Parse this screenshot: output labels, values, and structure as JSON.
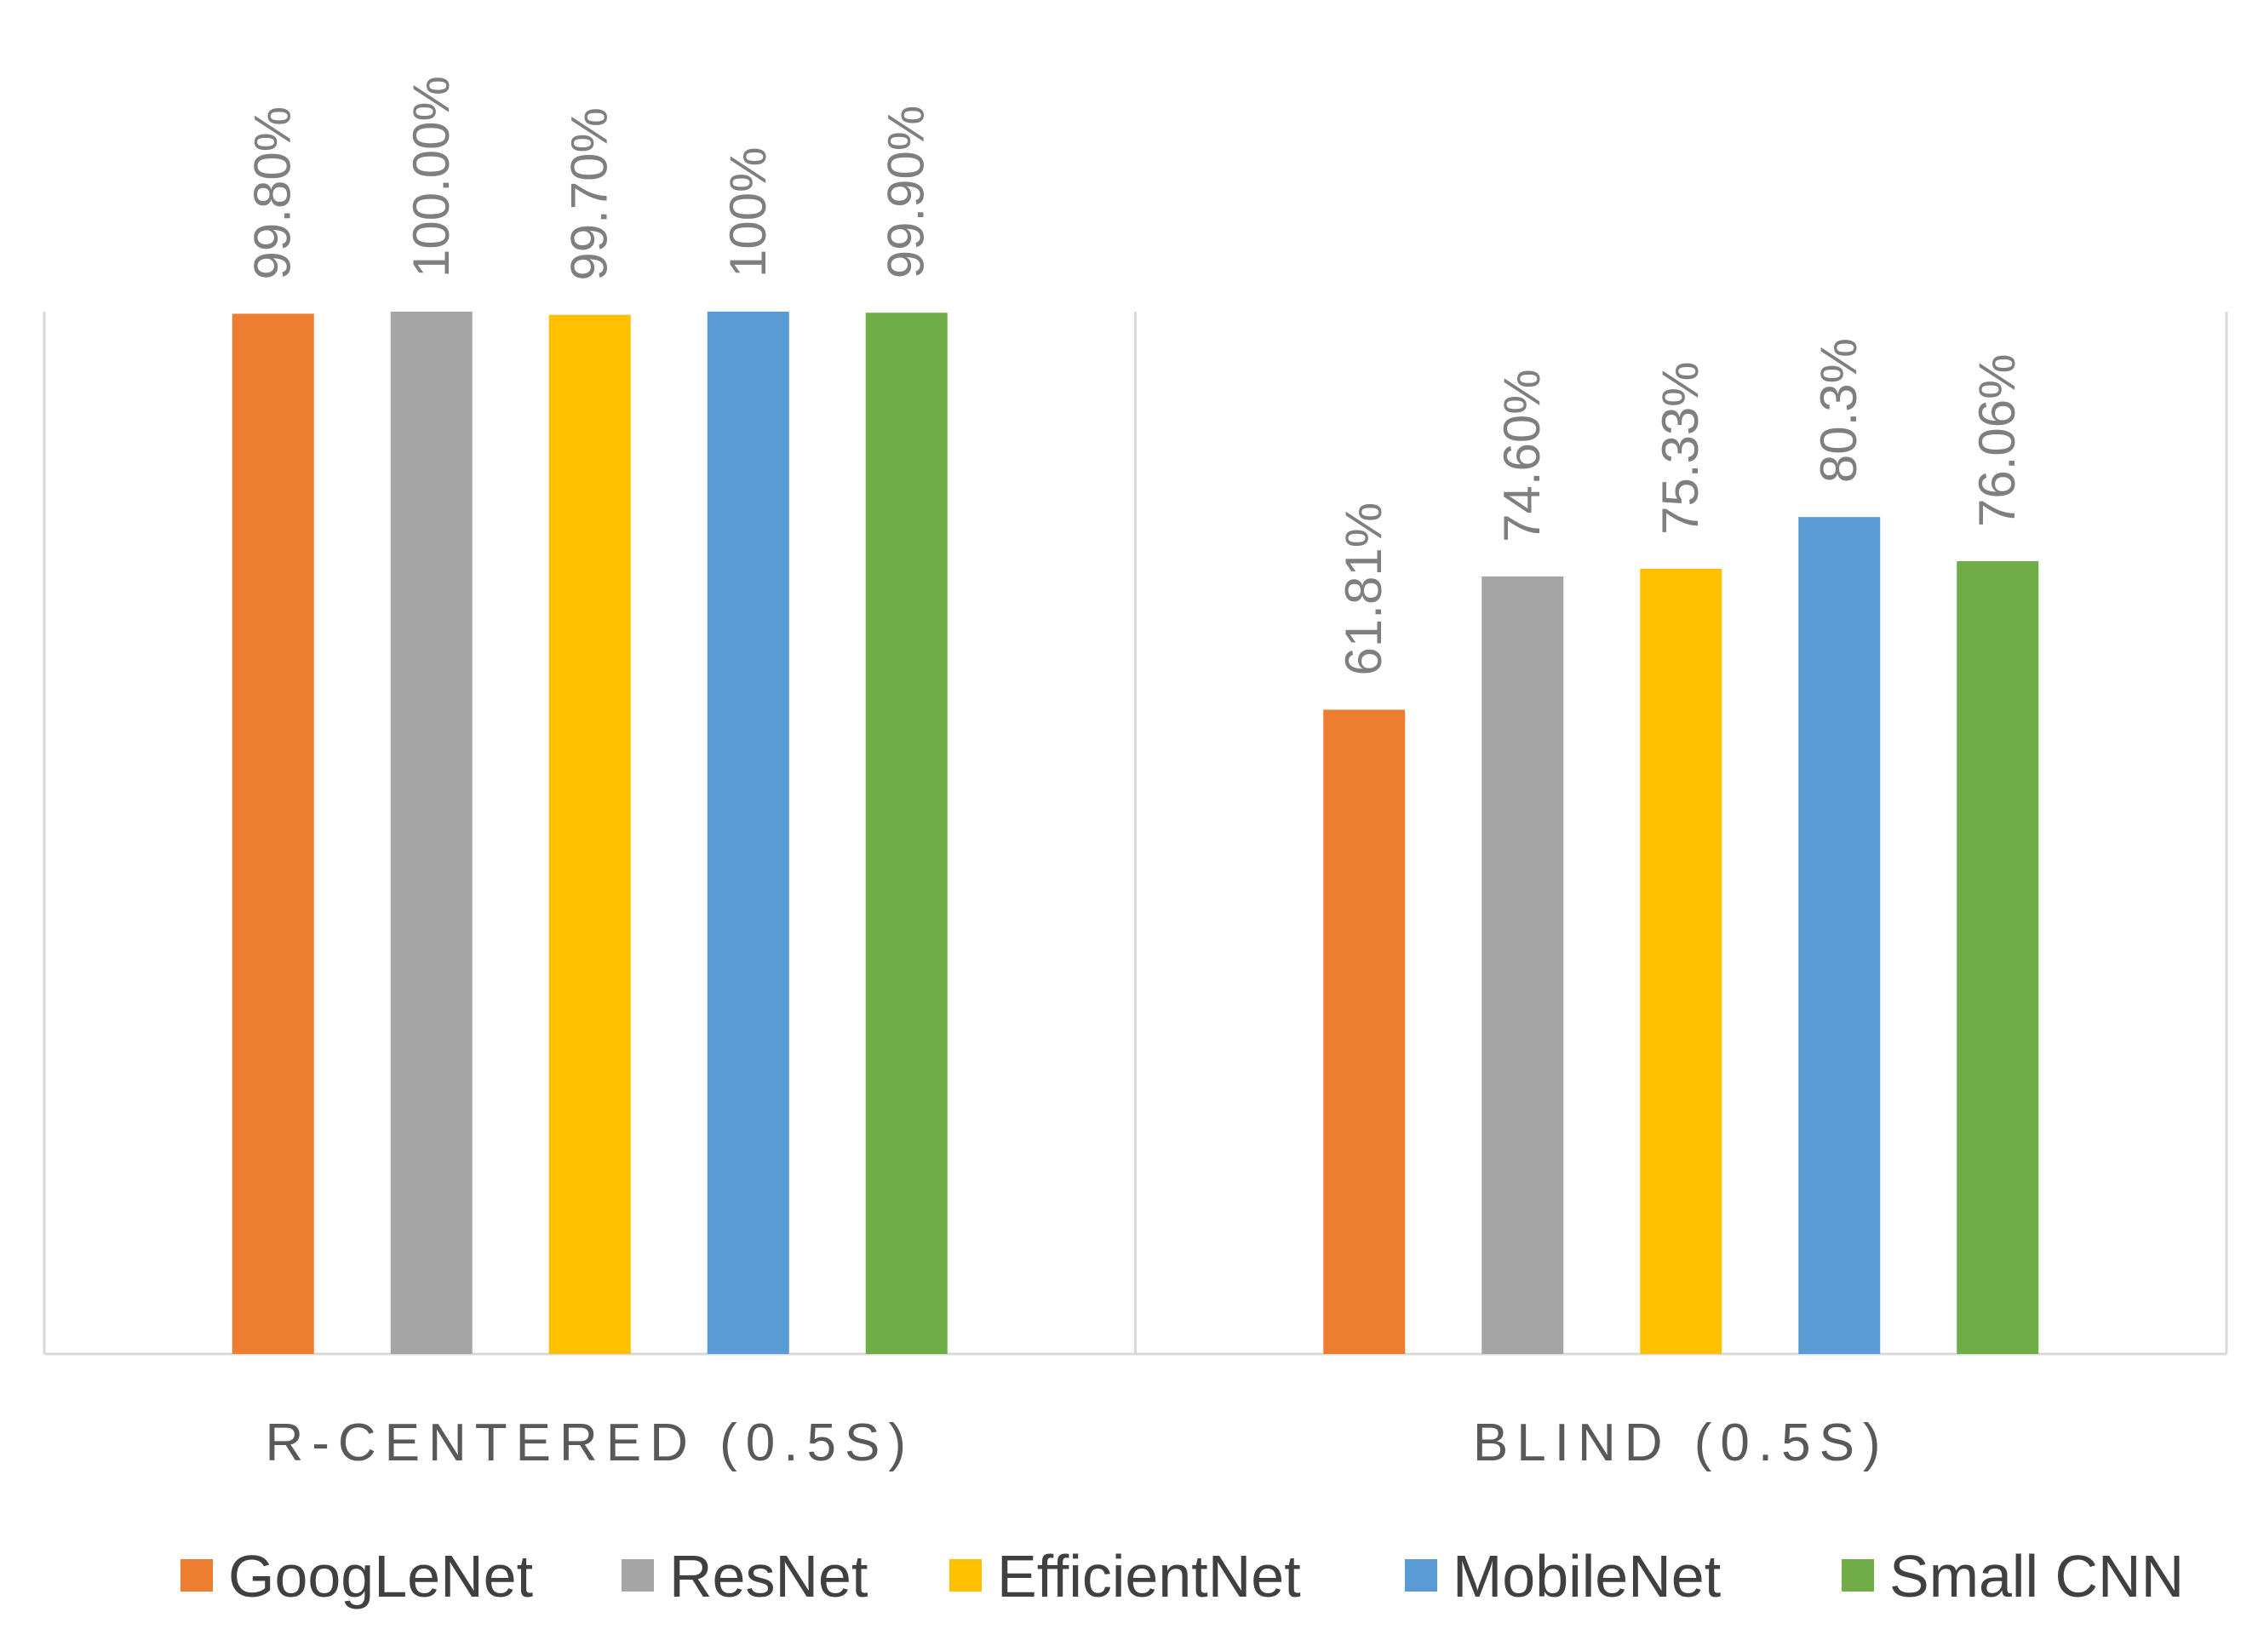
{
  "chart_data": {
    "type": "bar",
    "title": "",
    "xlabel": "",
    "ylabel": "",
    "ylim": [
      0,
      100
    ],
    "grid": false,
    "legend_position": "bottom",
    "categories": [
      "R-CENTERED (0.5S)",
      "BLIND (0.5S)"
    ],
    "series": [
      {
        "name": "GoogLeNet",
        "color": "#ED7D31",
        "values": [
          99.8,
          61.81
        ],
        "labels": [
          "99.80%",
          "61.81%"
        ]
      },
      {
        "name": "ResNet",
        "color": "#A5A5A5",
        "values": [
          100.0,
          74.6
        ],
        "labels": [
          "100.00%",
          "74.60%"
        ]
      },
      {
        "name": "EfficientNet",
        "color": "#FFC000",
        "values": [
          99.7,
          75.33
        ],
        "labels": [
          "99.70%",
          "75.33%"
        ]
      },
      {
        "name": "MobileNet",
        "color": "#5B9BD5",
        "values": [
          100.0,
          80.3
        ],
        "labels": [
          "100%",
          "80.3%"
        ]
      },
      {
        "name": "Small CNN",
        "color": "#70AD47",
        "values": [
          99.9,
          76.06
        ],
        "labels": [
          "99.90%",
          "76.06%"
        ]
      }
    ]
  }
}
